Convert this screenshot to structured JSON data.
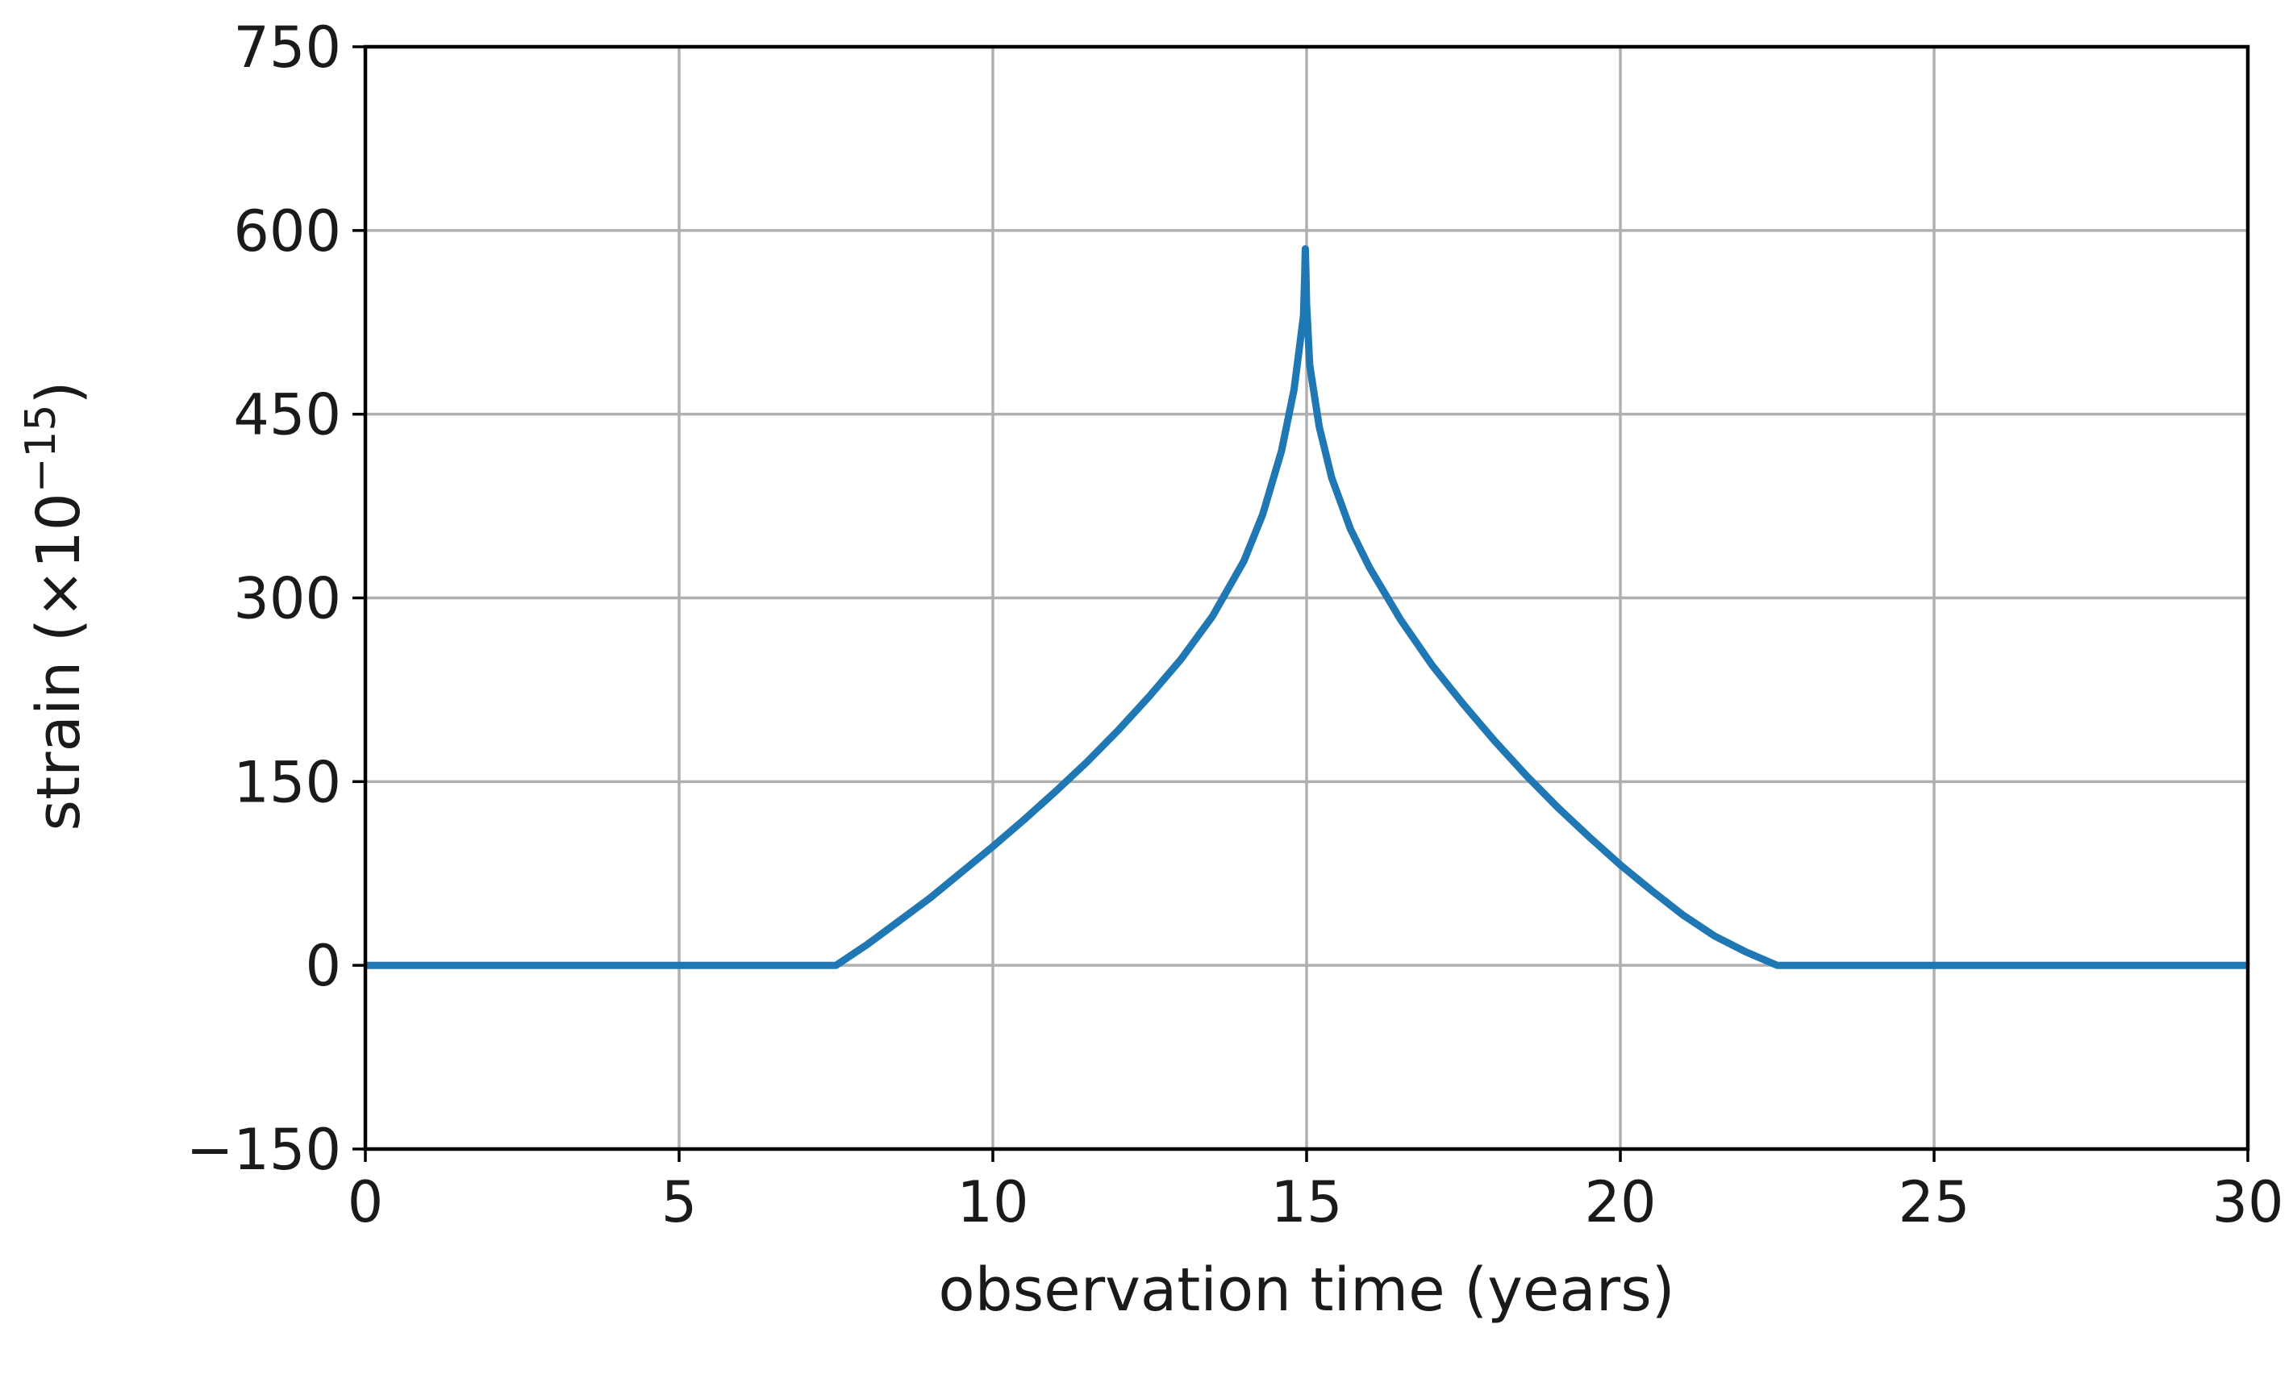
{
  "chart_data": {
    "type": "line",
    "title": "",
    "xlabel": "observation time (years)",
    "ylabel_main": "strain (×10",
    "ylabel_exp": "−15",
    "ylabel_close": ")",
    "xlim": [
      0,
      30
    ],
    "ylim": [
      -150,
      750
    ],
    "xticks": [
      0,
      5,
      10,
      15,
      20,
      25,
      30
    ],
    "xtick_labels": [
      "0",
      "5",
      "10",
      "15",
      "20",
      "25",
      "30"
    ],
    "yticks": [
      -150,
      0,
      150,
      300,
      450,
      600,
      750
    ],
    "ytick_labels": [
      "−150",
      "0",
      "150",
      "300",
      "450",
      "600",
      "750"
    ],
    "grid": true,
    "legend": "none",
    "series": [
      {
        "color": "#1f77b4",
        "x": [
          0,
          7.5,
          8.0,
          8.5,
          9.0,
          9.5,
          10.0,
          10.5,
          11.0,
          11.5,
          12.0,
          12.5,
          13.0,
          13.5,
          14.0,
          14.3,
          14.6,
          14.8,
          14.95,
          14.97,
          14.98,
          14.99,
          15.0,
          15.05,
          15.2,
          15.4,
          15.7,
          16.0,
          16.5,
          17.0,
          17.5,
          18.0,
          18.5,
          19.0,
          19.5,
          20.0,
          20.5,
          21.0,
          21.5,
          22.0,
          22.5,
          30
        ],
        "y": [
          0,
          0,
          17,
          36,
          55,
          76,
          97,
          119,
          142,
          166,
          192,
          220,
          250,
          285,
          330,
          368,
          420,
          470,
          530,
          565,
          585,
          565,
          540,
          490,
          440,
          398,
          356,
          325,
          282,
          245,
          213,
          183,
          155,
          129,
          105,
          82,
          61,
          41,
          24,
          11,
          0,
          0
        ]
      }
    ]
  }
}
